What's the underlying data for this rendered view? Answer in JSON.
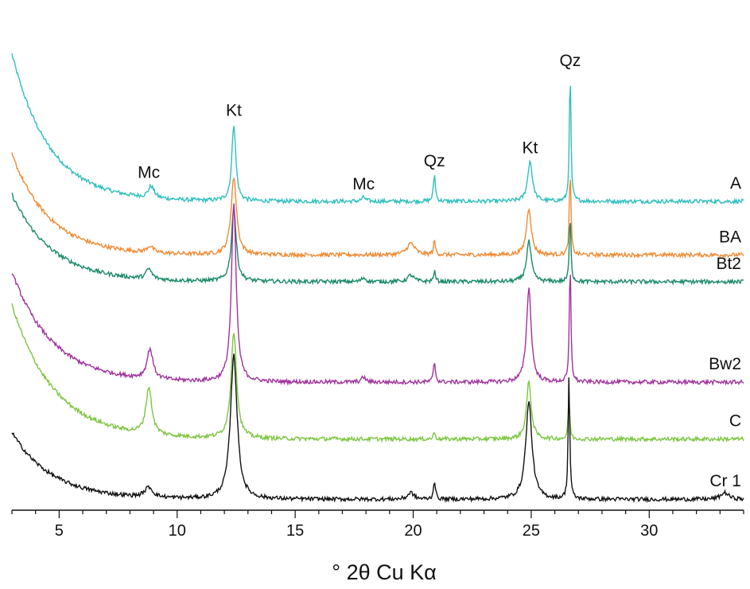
{
  "chart_data": {
    "type": "line",
    "xlabel": "° 2θ Cu Kα",
    "ylabel": "",
    "xlim": [
      3,
      34
    ],
    "x_ticks": [
      5,
      10,
      15,
      20,
      25,
      30
    ],
    "grid": false,
    "legend": "none; series labels printed at right end of each trace",
    "series": [
      {
        "name": "A",
        "color": "#2fbfbf",
        "baseline": 0.52,
        "start_rise": 0.44,
        "decay": 1.6,
        "peaks": [
          [
            8.9,
            0.035,
            0.15
          ],
          [
            12.4,
            0.23,
            0.1
          ],
          [
            17.9,
            0.012,
            0.1
          ],
          [
            20.9,
            0.08,
            0.05
          ],
          [
            24.95,
            0.12,
            0.12
          ],
          [
            26.65,
            0.38,
            0.04
          ]
        ]
      },
      {
        "name": "BA",
        "color": "#f08a32",
        "baseline": 0.36,
        "start_rise": 0.3,
        "decay": 1.6,
        "peaks": [
          [
            8.85,
            0.02,
            0.15
          ],
          [
            12.4,
            0.23,
            0.14
          ],
          [
            19.9,
            0.035,
            0.2
          ],
          [
            20.9,
            0.04,
            0.05
          ],
          [
            24.9,
            0.14,
            0.12
          ],
          [
            26.65,
            0.25,
            0.04
          ]
        ]
      },
      {
        "name": "Bt2",
        "color": "#1a8a6a",
        "baseline": 0.28,
        "start_rise": 0.26,
        "decay": 1.7,
        "peaks": [
          [
            8.8,
            0.03,
            0.15
          ],
          [
            12.4,
            0.22,
            0.12
          ],
          [
            17.9,
            0.012,
            0.1
          ],
          [
            19.9,
            0.02,
            0.15
          ],
          [
            20.9,
            0.03,
            0.05
          ],
          [
            24.9,
            0.12,
            0.12
          ],
          [
            26.65,
            0.2,
            0.04
          ]
        ]
      },
      {
        "name": "Bw2",
        "color": "#a0329e",
        "baseline": -0.02,
        "start_rise": 0.33,
        "decay": 1.7,
        "peaks": [
          [
            8.85,
            0.09,
            0.15
          ],
          [
            12.4,
            0.53,
            0.12
          ],
          [
            17.9,
            0.015,
            0.1
          ],
          [
            20.9,
            0.06,
            0.05
          ],
          [
            24.9,
            0.28,
            0.12
          ],
          [
            26.65,
            0.35,
            0.04
          ]
        ]
      },
      {
        "name": "C",
        "color": "#7cc640",
        "baseline": -0.19,
        "start_rise": 0.4,
        "decay": 1.8,
        "peaks": [
          [
            8.8,
            0.14,
            0.15
          ],
          [
            12.4,
            0.32,
            0.14
          ],
          [
            20.9,
            0.02,
            0.05
          ],
          [
            24.9,
            0.17,
            0.12
          ],
          [
            26.6,
            0.12,
            0.04
          ]
        ]
      },
      {
        "name": "Cr 1",
        "color": "#111111",
        "baseline": -0.37,
        "start_rise": 0.2,
        "decay": 1.7,
        "peaks": [
          [
            8.8,
            0.03,
            0.2
          ],
          [
            12.4,
            0.43,
            0.17
          ],
          [
            19.9,
            0.02,
            0.15
          ],
          [
            20.9,
            0.055,
            0.05
          ],
          [
            24.9,
            0.29,
            0.16
          ],
          [
            26.6,
            0.37,
            0.04
          ],
          [
            33.2,
            0.02,
            0.2
          ]
        ]
      }
    ],
    "annotations": [
      {
        "text": "Mc",
        "x": 8.8,
        "series": "A"
      },
      {
        "text": "Kt",
        "x": 12.4,
        "series": "A"
      },
      {
        "text": "Mc",
        "x": 17.9,
        "series": "A"
      },
      {
        "text": "Qz",
        "x": 20.9,
        "series": "A"
      },
      {
        "text": "Kt",
        "x": 24.95,
        "series": "A"
      },
      {
        "text": "Qz",
        "x": 26.65,
        "series": "A"
      }
    ]
  }
}
